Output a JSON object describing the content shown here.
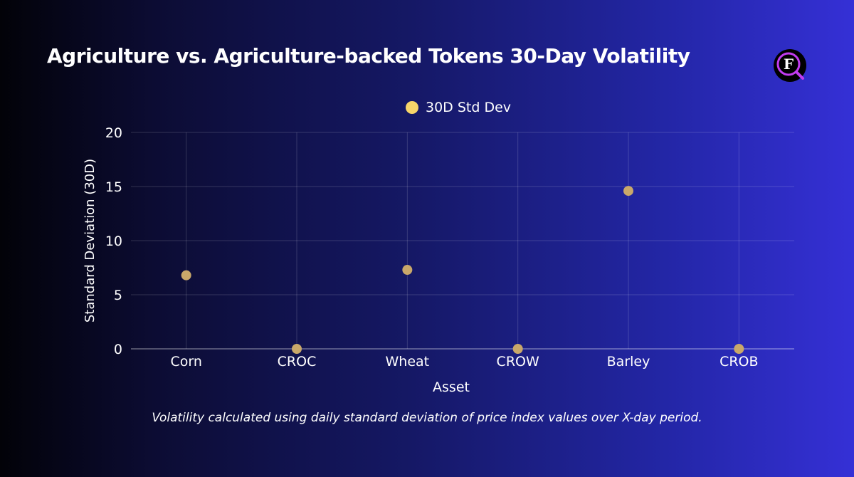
{
  "title": "Agriculture vs. Agriculture-backed Tokens 30-Day Volatility",
  "footnote": "Volatility calculated using daily standard deviation of price index values over X-day period.",
  "logo": {
    "icon": "f-monogram-magnifier-icon",
    "letter": "F"
  },
  "colors": {
    "point": "#c9a86a",
    "legend_dot": "#f7d56a",
    "grid": "rgba(255,255,255,0.16)",
    "axis": "rgba(255,255,255,0.45)",
    "text": "#ffffff",
    "logo_ring": "#c23cf0"
  },
  "chart_data": {
    "type": "scatter",
    "title": "Agriculture vs. Agriculture-backed Tokens 30-Day Volatility",
    "xlabel": "Asset",
    "ylabel": "Standard Deviation (30D)",
    "categories": [
      "Corn",
      "CROC",
      "Wheat",
      "CROW",
      "Barley",
      "CROB"
    ],
    "series": [
      {
        "name": "30D Std Dev",
        "values": [
          6.8,
          0,
          7.3,
          0,
          14.6,
          0
        ]
      }
    ],
    "ylim": [
      0,
      20
    ],
    "yticks": [
      0,
      5,
      10,
      15,
      20
    ],
    "grid": true,
    "legend_position": "top-center"
  }
}
